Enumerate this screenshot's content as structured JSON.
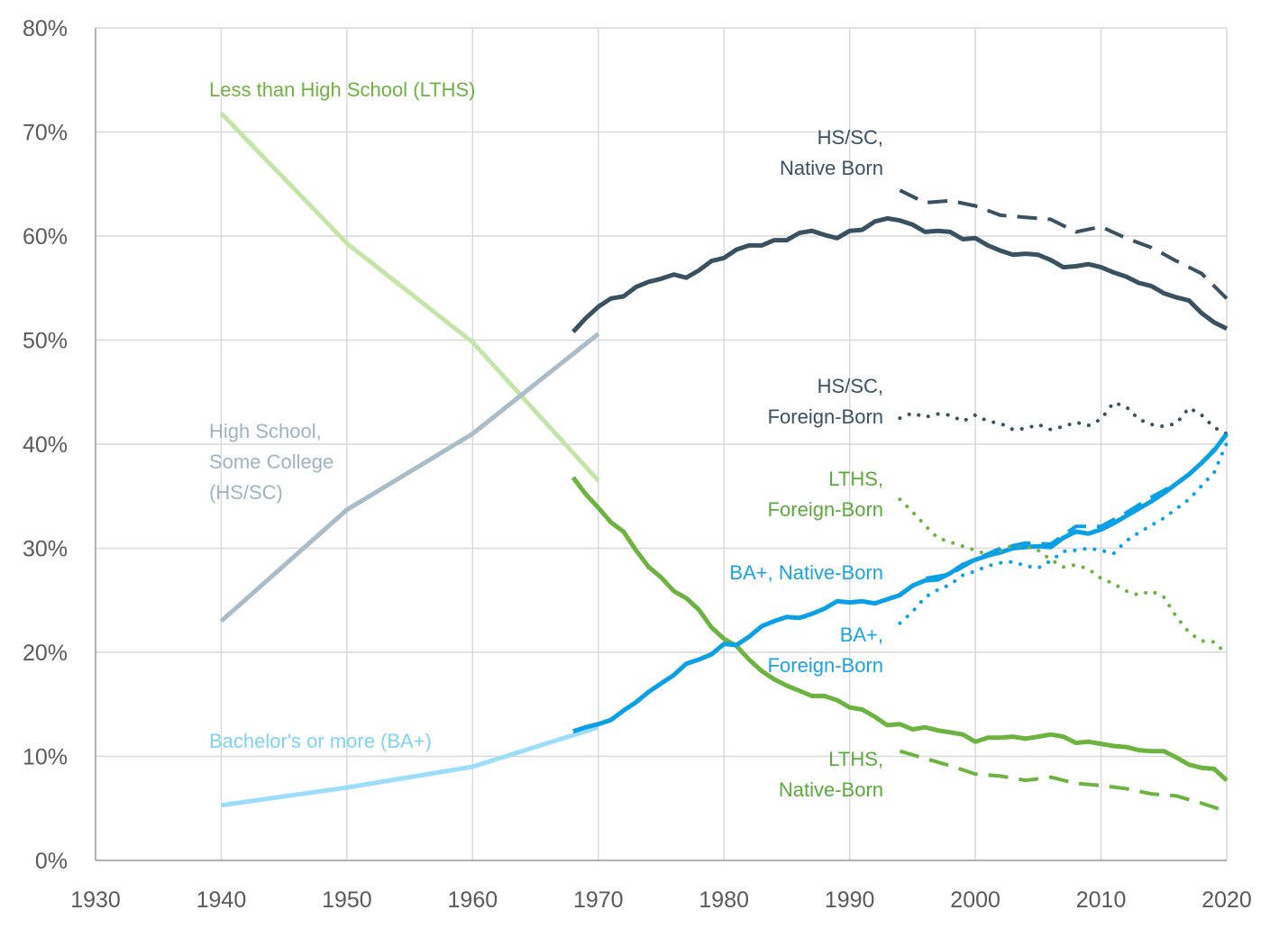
{
  "chart_data": {
    "type": "line",
    "title": "",
    "xlabel": "",
    "ylabel": "",
    "xlim": [
      1930,
      2020
    ],
    "ylim": [
      0,
      80
    ],
    "grid": true,
    "x_ticks": [
      "1930",
      "1940",
      "1950",
      "1960",
      "1970",
      "1980",
      "1990",
      "2000",
      "2010",
      "2020"
    ],
    "y_ticks": [
      "0%",
      "10%",
      "20%",
      "30%",
      "40%",
      "50%",
      "60%",
      "70%",
      "80%"
    ],
    "annotations": [
      {
        "lines": [
          "Less than High School (LTHS)"
        ],
        "color": "#6db33f",
        "anchor": "start"
      },
      {
        "lines": [
          "High School,",
          "Some College",
          "(HS/SC)"
        ],
        "color": "#9fb3c3",
        "anchor": "start"
      },
      {
        "lines": [
          "Bachelor's or more (BA+)"
        ],
        "color": "#7fd2f5",
        "anchor": "start"
      },
      {
        "lines": [
          "HS/SC,",
          "Native Born"
        ],
        "color": "#3a5161",
        "anchor": "end"
      },
      {
        "lines": [
          "HS/SC,",
          "Foreign-Born"
        ],
        "color": "#3a5161",
        "anchor": "end"
      },
      {
        "lines": [
          "LTHS,",
          "Foreign-Born"
        ],
        "color": "#5aaa3c",
        "anchor": "end"
      },
      {
        "lines": [
          "BA+, Native-Born"
        ],
        "color": "#1aa3e3",
        "anchor": "end"
      },
      {
        "lines": [
          "BA+,",
          "Foreign-Born"
        ],
        "color": "#1aa3e3",
        "anchor": "end"
      },
      {
        "lines": [
          "LTHS,",
          "Native-Born"
        ],
        "color": "#5aaa3c",
        "anchor": "end"
      }
    ],
    "series": [
      {
        "color": "#c5e4a8",
        "style": "solid",
        "width": 5,
        "x": [
          1940,
          1950,
          1960,
          1970
        ],
        "y": [
          71.8,
          59.3,
          49.8,
          36.5
        ]
      },
      {
        "color": "#a9bcc8",
        "style": "solid",
        "width": 5,
        "x": [
          1940,
          1950,
          1960,
          1970
        ],
        "y": [
          23.0,
          33.7,
          41.0,
          50.6
        ]
      },
      {
        "color": "#9bddfa",
        "style": "solid",
        "width": 5,
        "x": [
          1940,
          1950,
          1960,
          1970
        ],
        "y": [
          5.3,
          7.0,
          9.0,
          12.8
        ]
      },
      {
        "color": "#3a5161",
        "style": "solid",
        "width": 5,
        "x": [
          1968,
          1969,
          1970,
          1971,
          1972,
          1973,
          1974,
          1975,
          1976,
          1977,
          1978,
          1979,
          1980,
          1981,
          1982,
          1983,
          1984,
          1985,
          1986,
          1987,
          1988,
          1989,
          1990,
          1991,
          1992,
          1993,
          1994,
          1995,
          1996,
          1997,
          1998,
          1999,
          2000,
          2001,
          2002,
          2003,
          2004,
          2005,
          2006,
          2007,
          2008,
          2009,
          2010,
          2011,
          2012,
          2013,
          2014,
          2015,
          2016,
          2017,
          2018,
          2019,
          2020
        ],
        "y": [
          50.8,
          52.1,
          53.2,
          54.0,
          54.2,
          55.1,
          55.6,
          55.9,
          56.3,
          56.0,
          56.7,
          57.6,
          57.9,
          58.7,
          59.1,
          59.1,
          59.6,
          59.6,
          60.3,
          60.5,
          60.1,
          59.8,
          60.5,
          60.6,
          61.4,
          61.7,
          61.5,
          61.1,
          60.4,
          60.5,
          60.4,
          59.7,
          59.8,
          59.1,
          58.6,
          58.2,
          58.3,
          58.2,
          57.7,
          57.0,
          57.1,
          57.3,
          57.0,
          56.5,
          56.1,
          55.5,
          55.2,
          54.5,
          54.1,
          53.8,
          52.6,
          51.7,
          51.1
        ]
      },
      {
        "color": "#6db33f",
        "style": "solid",
        "width": 5,
        "x": [
          1968,
          1969,
          1970,
          1971,
          1972,
          1973,
          1974,
          1975,
          1976,
          1977,
          1978,
          1979,
          1980,
          1981,
          1982,
          1983,
          1984,
          1985,
          1986,
          1987,
          1988,
          1989,
          1990,
          1991,
          1992,
          1993,
          1994,
          1995,
          1996,
          1997,
          1998,
          1999,
          2000,
          2001,
          2002,
          2003,
          2004,
          2005,
          2006,
          2007,
          2008,
          2009,
          2010,
          2011,
          2012,
          2013,
          2014,
          2015,
          2016,
          2017,
          2018,
          2019,
          2020
        ],
        "y": [
          36.8,
          35.2,
          33.9,
          32.5,
          31.6,
          29.8,
          28.2,
          27.2,
          25.9,
          25.2,
          24.1,
          22.4,
          21.3,
          20.6,
          19.3,
          18.2,
          17.4,
          16.8,
          16.3,
          15.8,
          15.8,
          15.4,
          14.7,
          14.5,
          13.8,
          13.0,
          13.1,
          12.6,
          12.8,
          12.5,
          12.3,
          12.1,
          11.4,
          11.8,
          11.8,
          11.9,
          11.7,
          11.9,
          12.1,
          11.9,
          11.3,
          11.4,
          11.2,
          11.0,
          10.9,
          10.6,
          10.5,
          10.5,
          9.9,
          9.2,
          8.9,
          8.8,
          7.7
        ]
      },
      {
        "color": "#0aa0e6",
        "style": "solid",
        "width": 5,
        "x": [
          1968,
          1969,
          1970,
          1971,
          1972,
          1973,
          1974,
          1975,
          1976,
          1977,
          1978,
          1979,
          1980,
          1981,
          1982,
          1983,
          1984,
          1985,
          1986,
          1987,
          1988,
          1989,
          1990,
          1991,
          1992,
          1993,
          1994,
          1995,
          1996,
          1997,
          1998,
          1999,
          2000,
          2001,
          2002,
          2003,
          2004,
          2005,
          2006,
          2007,
          2008,
          2009,
          2010,
          2011,
          2012,
          2013,
          2014,
          2015,
          2016,
          2017,
          2018,
          2019,
          2020
        ],
        "y": [
          12.4,
          12.8,
          13.1,
          13.5,
          14.4,
          15.2,
          16.2,
          17.0,
          17.8,
          18.9,
          19.3,
          19.8,
          20.8,
          20.7,
          21.5,
          22.5,
          23.0,
          23.4,
          23.3,
          23.7,
          24.2,
          24.9,
          24.8,
          24.9,
          24.7,
          25.1,
          25.5,
          26.4,
          26.9,
          27.0,
          27.6,
          28.4,
          28.9,
          29.3,
          29.6,
          30.0,
          30.1,
          30.2,
          30.1,
          31.0,
          31.6,
          31.4,
          31.8,
          32.4,
          33.1,
          33.8,
          34.5,
          35.3,
          36.2,
          37.1,
          38.2,
          39.4,
          41.0
        ]
      },
      {
        "color": "#3a5161",
        "style": "dashed",
        "width": 4,
        "x": [
          1994,
          1996,
          1998,
          2000,
          2002,
          2004,
          2006,
          2008,
          2010,
          2012,
          2014,
          2016,
          2018,
          2020
        ],
        "y": [
          64.4,
          63.2,
          63.4,
          62.9,
          62.0,
          61.8,
          61.6,
          60.4,
          60.9,
          59.8,
          58.9,
          57.6,
          56.4,
          54.0
        ]
      },
      {
        "color": "#3a5161",
        "style": "dotted",
        "width": 4,
        "x": [
          1994,
          1995,
          1996,
          1997,
          1998,
          1999,
          2000,
          2001,
          2002,
          2003,
          2004,
          2005,
          2006,
          2007,
          2008,
          2009,
          2010,
          2011,
          2012,
          2013,
          2014,
          2015,
          2016,
          2017,
          2018,
          2019,
          2020
        ],
        "y": [
          42.5,
          43.0,
          42.6,
          42.9,
          42.8,
          42.2,
          42.8,
          42.2,
          42.0,
          41.4,
          41.5,
          41.9,
          41.4,
          41.7,
          42.1,
          41.8,
          42.4,
          44.0,
          43.6,
          42.4,
          41.9,
          41.7,
          42.0,
          43.5,
          42.8,
          41.6,
          41.0
        ]
      },
      {
        "color": "#6db33f",
        "style": "dashed",
        "width": 4,
        "x": [
          1994,
          1996,
          1998,
          2000,
          2002,
          2004,
          2006,
          2008,
          2010,
          2012,
          2014,
          2016,
          2018,
          2020
        ],
        "y": [
          10.5,
          9.8,
          9.1,
          8.3,
          8.1,
          7.7,
          8.0,
          7.4,
          7.2,
          6.9,
          6.4,
          6.2,
          5.5,
          4.7
        ]
      },
      {
        "color": "#6db33f",
        "style": "dotted",
        "width": 4,
        "x": [
          1994,
          1995,
          1996,
          1997,
          1998,
          1999,
          2000,
          2001,
          2002,
          2003,
          2004,
          2005,
          2006,
          2007,
          2008,
          2009,
          2010,
          2011,
          2012,
          2013,
          2014,
          2015,
          2016,
          2017,
          2018,
          2019,
          2020
        ],
        "y": [
          34.7,
          33.5,
          32.2,
          31.0,
          30.6,
          30.2,
          29.8,
          29.4,
          29.8,
          30.3,
          30.2,
          29.8,
          28.9,
          28.2,
          28.4,
          28.0,
          27.1,
          26.6,
          25.9,
          25.5,
          25.9,
          25.3,
          23.4,
          21.9,
          21.1,
          21.0,
          19.8
        ]
      },
      {
        "color": "#0aa0e6",
        "style": "dashed",
        "width": 4,
        "x": [
          1994,
          1996,
          1998,
          2000,
          2002,
          2004,
          2006,
          2008,
          2010,
          2012,
          2014,
          2016,
          2018,
          2020
        ],
        "y": [
          25.6,
          27.1,
          27.5,
          28.9,
          30.0,
          30.5,
          30.4,
          32.1,
          32.1,
          33.4,
          34.9,
          36.2,
          38.1,
          41.0
        ]
      },
      {
        "color": "#0aa0e6",
        "style": "dotted",
        "width": 4,
        "x": [
          1994,
          1995,
          1996,
          1997,
          1998,
          1999,
          2000,
          2001,
          2002,
          2003,
          2004,
          2005,
          2006,
          2007,
          2008,
          2009,
          2010,
          2011,
          2012,
          2013,
          2014,
          2015,
          2016,
          2017,
          2018,
          2019,
          2020
        ],
        "y": [
          22.8,
          23.9,
          25.3,
          26.0,
          26.5,
          27.4,
          27.8,
          28.3,
          28.6,
          28.7,
          28.3,
          28.1,
          28.8,
          29.7,
          29.8,
          30.0,
          29.8,
          29.5,
          30.7,
          31.5,
          32.2,
          32.9,
          33.8,
          34.7,
          36.0,
          37.3,
          40.1
        ]
      }
    ]
  }
}
